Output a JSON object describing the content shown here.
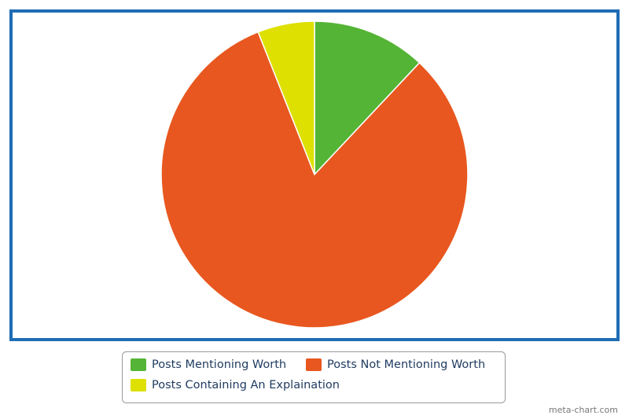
{
  "chart_data": {
    "type": "pie",
    "categories": [
      "Posts Mentioning Worth",
      "Posts Not Mentioning Worth",
      "Posts Containing An Explaination"
    ],
    "values": [
      12,
      82,
      6
    ],
    "colors": [
      "#54b435",
      "#e8571f",
      "#dde000"
    ],
    "watermark": "meta-chart.com"
  }
}
